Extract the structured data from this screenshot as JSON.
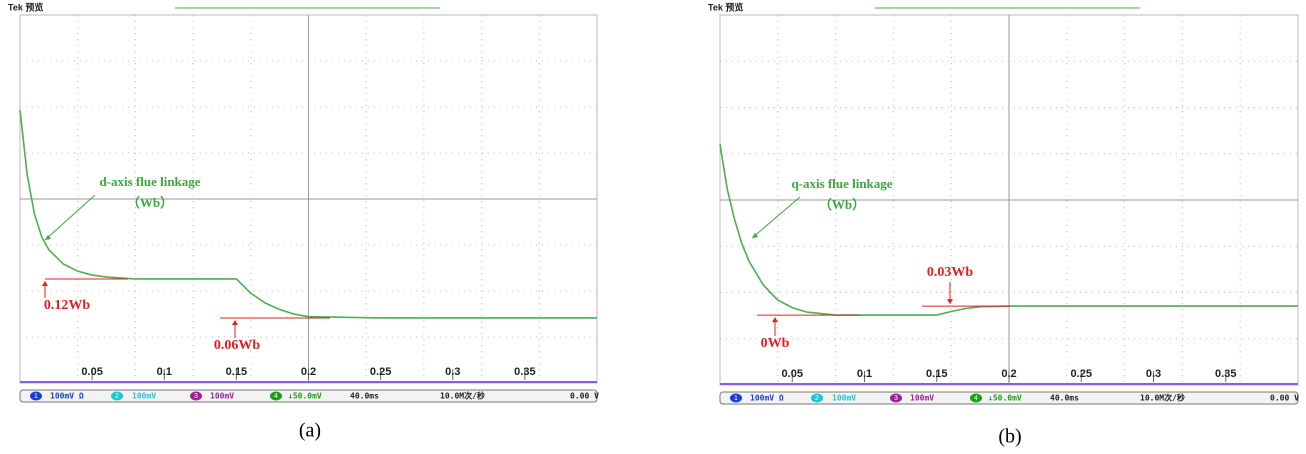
{
  "chart_data": [
    {
      "type": "line",
      "header": "Tek 预览",
      "caption": "(a)",
      "x": [
        0,
        0.005,
        0.01,
        0.015,
        0.02,
        0.03,
        0.04,
        0.05,
        0.06,
        0.08,
        0.15,
        0.16,
        0.17,
        0.18,
        0.19,
        0.2,
        0.25,
        0.3,
        0.35,
        0.4
      ],
      "series": [
        {
          "name": "d-axis flue linkage",
          "color": "#4caf50",
          "values": [
            0.38,
            0.28,
            0.22,
            0.185,
            0.165,
            0.143,
            0.132,
            0.126,
            0.123,
            0.12,
            0.12,
            0.098,
            0.083,
            0.073,
            0.066,
            0.062,
            0.06,
            0.06,
            0.06,
            0.06
          ]
        }
      ],
      "xlim": [
        0,
        0.4
      ],
      "xticks": [
        0.05,
        0.1,
        0.15,
        0.2,
        0.25,
        0.3,
        0.35
      ],
      "ylim": [
        -0.04,
        0.526
      ],
      "grid": true,
      "annotations": [
        {
          "text": "d-axis flue linkage"
        },
        {
          "text": "（Wb）"
        },
        {
          "text": "0.12Wb",
          "value": 0.12
        },
        {
          "text": "0.06Wb",
          "value": 0.06
        }
      ],
      "status_bar": [
        "1",
        "100mV Ω",
        "2",
        "100mV",
        "3",
        "100mV",
        "4",
        "↓50.0mV",
        "40.0ms",
        "10.0M次/秒",
        "0.00 V"
      ]
    },
    {
      "type": "line",
      "header": "Tek 预览",
      "caption": "(b)",
      "x": [
        0,
        0.005,
        0.01,
        0.015,
        0.02,
        0.03,
        0.04,
        0.05,
        0.06,
        0.08,
        0.15,
        0.16,
        0.17,
        0.18,
        0.2,
        0.3,
        0.4
      ],
      "series": [
        {
          "name": "q-axis flue linkage",
          "color": "#4caf50",
          "values": [
            0.57,
            0.42,
            0.32,
            0.24,
            0.18,
            0.1,
            0.05,
            0.025,
            0.01,
            0,
            0,
            0.012,
            0.022,
            0.028,
            0.03,
            0.03,
            0.03
          ]
        }
      ],
      "xlim": [
        0,
        0.4
      ],
      "xticks": [
        0.05,
        0.1,
        0.15,
        0.2,
        0.25,
        0.3,
        0.35
      ],
      "ylim": [
        -0.233,
        1.0
      ],
      "grid": true,
      "annotations": [
        {
          "text": "q-axis flue linkage"
        },
        {
          "text": "（Wb）"
        },
        {
          "text": "0Wb",
          "value": 0
        },
        {
          "text": "0.03Wb",
          "value": 0.03
        }
      ],
      "status_bar": [
        "1",
        "100mV Ω",
        "2",
        "100mV",
        "3",
        "100mV",
        "4",
        "↓50.0mV",
        "40.0ms",
        "10.0M次/秒",
        "0.00 V"
      ]
    }
  ]
}
